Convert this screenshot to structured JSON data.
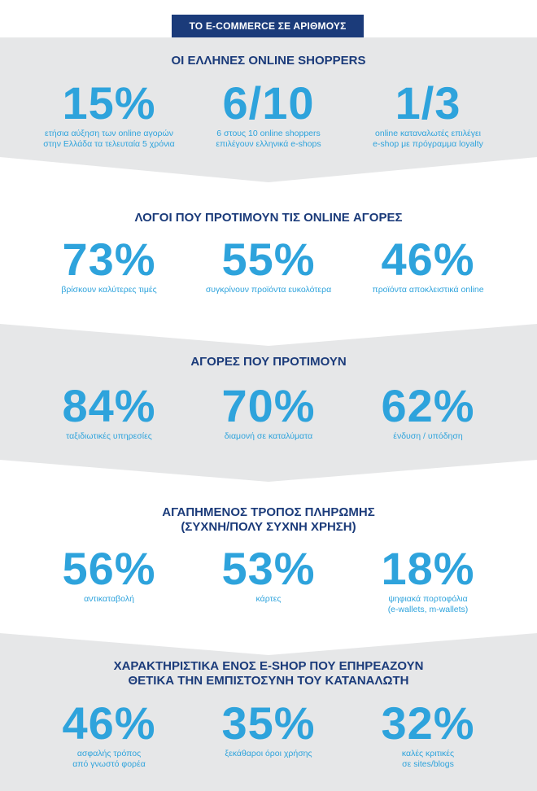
{
  "header": {
    "title": "ΤΟ E-COMMERCE ΣΕ ΑΡΙΘΜΟΥΣ"
  },
  "colors": {
    "navy": "#1b3b7a",
    "accent": "#2ea3dc",
    "band": "#e6e7e8",
    "background": "#ffffff"
  },
  "sections": [
    {
      "title": "ΟΙ ΕΛΛΗΝΕΣ ONLINE SHOPPERS",
      "stats": [
        {
          "value": "15%",
          "desc": "ετήσια αύξηση των online αγορών\nστην Ελλάδα τα τελευταία 5 χρόνια"
        },
        {
          "value": "6/10",
          "desc": "6 στους 10 online shoppers\nεπιλέγουν ελληνικά e-shops"
        },
        {
          "value": "1/3",
          "desc": "online καταναλωτές επιλέγει\ne-shop με πρόγραμμα loyalty"
        }
      ]
    },
    {
      "title": "ΛΟΓΟΙ ΠΟΥ ΠΡΟΤΙΜΟΥΝ ΤΙΣ ONLINE ΑΓΟΡΕΣ",
      "stats": [
        {
          "value": "73%",
          "desc": "βρίσκουν καλύτερες τιμές"
        },
        {
          "value": "55%",
          "desc": "συγκρίνουν προϊόντα ευκολότερα"
        },
        {
          "value": "46%",
          "desc": "προϊόντα αποκλειστικά online"
        }
      ]
    },
    {
      "title": "ΑΓΟΡΕΣ ΠΟΥ ΠΡΟΤΙΜΟΥΝ",
      "stats": [
        {
          "value": "84%",
          "desc": "ταξιδιωτικές υπηρεσίες"
        },
        {
          "value": "70%",
          "desc": "διαμονή σε καταλύματα"
        },
        {
          "value": "62%",
          "desc": "ένδυση / υπόδηση"
        }
      ]
    },
    {
      "title": "ΑΓΑΠΗΜΕΝΟΣ ΤΡΟΠΟΣ ΠΛΗΡΩΜΗΣ\n(ΣΥΧΝΗ/ΠΟΛΥ ΣΥΧΝΗ ΧΡΗΣΗ)",
      "stats": [
        {
          "value": "56%",
          "desc": "αντικαταβολή"
        },
        {
          "value": "53%",
          "desc": "κάρτες"
        },
        {
          "value": "18%",
          "desc": "ψηφιακά πορτοφόλια\n(e-wallets, m-wallets)"
        }
      ]
    },
    {
      "title": "ΧΑΡΑΚΤΗΡΙΣΤΙΚΑ ΕΝΟΣ E-SHOP ΠΟΥ ΕΠΗΡΕΑΖΟΥΝ\nΘΕΤΙΚΑ ΤΗΝ ΕΜΠΙΣΤΟΣΥΝΗ ΤΟΥ ΚΑΤΑΝΑΛΩΤΗ",
      "stats": [
        {
          "value": "46%",
          "desc": "ασφαλής τρόπος\nαπό γνωστό φορέα"
        },
        {
          "value": "35%",
          "desc": "ξεκάθαροι όροι χρήσης"
        },
        {
          "value": "32%",
          "desc": "καλές κριτικές\nσε sites/blogs"
        }
      ]
    }
  ]
}
